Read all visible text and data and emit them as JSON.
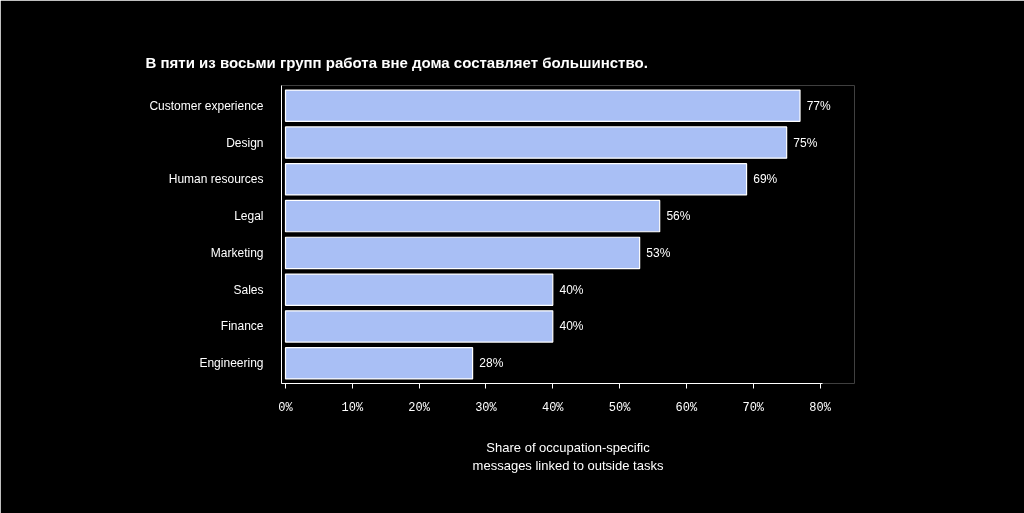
{
  "chart_data": {
    "type": "bar",
    "orientation": "horizontal",
    "title": "В пяти из восьми групп работа вне дома составляет большинство.",
    "xlabel": "Share of occupation-specific\nmessages linked to outside tasks",
    "categories": [
      "Customer experience",
      "Design",
      "Human resources",
      "Legal",
      "Marketing",
      "Sales",
      "Finance",
      "Engineering"
    ],
    "values": [
      77,
      75,
      69,
      56,
      53,
      40,
      40,
      28
    ],
    "value_labels": [
      "77%",
      "75%",
      "69%",
      "56%",
      "53%",
      "40%",
      "40%",
      "28%"
    ],
    "color": "#a9bff5",
    "xlim": [
      -0.6,
      80.3
    ],
    "xticks": [
      {
        "value": 0,
        "label": "0%"
      },
      {
        "value": 10,
        "label": "10%"
      },
      {
        "value": 20,
        "label": "20%"
      },
      {
        "value": 30,
        "label": "30%"
      },
      {
        "value": 40,
        "label": "40%"
      },
      {
        "value": 50,
        "label": "50%"
      },
      {
        "value": 60,
        "label": "60%"
      },
      {
        "value": 70,
        "label": "70%"
      },
      {
        "value": 80,
        "label": "80%"
      }
    ],
    "grid": false
  }
}
